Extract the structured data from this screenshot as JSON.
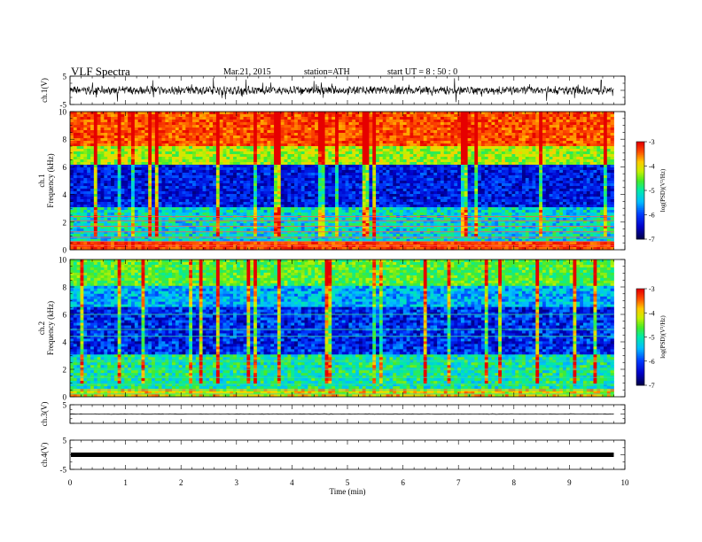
{
  "header": {
    "title": "VLF  Spectra",
    "date": "Mar.21, 2015",
    "station": "station=ATH",
    "start": "start  UT =   8 : 50 : 0"
  },
  "chart_data": [
    {
      "type": "line",
      "panel": "ch1-waveform",
      "ylabel": "ch.1(V)",
      "ylim": [
        -5,
        5
      ],
      "yticks": [
        "5",
        "-5"
      ],
      "xlim": [
        0,
        10
      ],
      "data_extent": [
        0,
        9.8
      ],
      "baseline_v": 0,
      "noise_amplitude_v": 3
    },
    {
      "type": "heatmap",
      "panel": "ch1-spectrogram",
      "ylabel": "ch.1 Frequency (kHz)",
      "ylim": [
        0,
        10
      ],
      "yticks": [
        "0",
        "2",
        "4",
        "6",
        "8",
        "10"
      ],
      "xlim": [
        0,
        10
      ],
      "data_extent": [
        0,
        9.8
      ],
      "colorbar": {
        "label": "log(PSD)(V²/Hz)",
        "range": [
          -7,
          -3
        ],
        "ticks": [
          "-3",
          "-4",
          "-5",
          "-6",
          "-7"
        ]
      }
    },
    {
      "type": "heatmap",
      "panel": "ch2-spectrogram",
      "ylabel": "ch.2 Frequency (kHz)",
      "ylim": [
        0,
        10
      ],
      "yticks": [
        "0",
        "2",
        "4",
        "6",
        "8",
        "10"
      ],
      "xlim": [
        0,
        10
      ],
      "data_extent": [
        0,
        9.8
      ],
      "colorbar": {
        "label": "log(PSD)(V²/Hz)",
        "range": [
          -7,
          -3
        ],
        "ticks": [
          "-3",
          "-4",
          "-5",
          "-6",
          "-7"
        ]
      }
    },
    {
      "type": "line",
      "panel": "ch3-waveform",
      "ylabel": "ch.3(V)",
      "ylim": [
        -5,
        5
      ],
      "yticks": [
        "5"
      ],
      "xlim": [
        0,
        10
      ],
      "data_extent": [
        0,
        9.8
      ],
      "baseline_v": 0
    },
    {
      "type": "line",
      "panel": "ch4-waveform",
      "ylabel": "ch.4(V)",
      "ylim": [
        -5,
        5
      ],
      "yticks": [
        "5",
        "-5"
      ],
      "xlim": [
        0,
        10
      ],
      "data_extent": [
        0,
        9.8
      ],
      "baseline_v": 0
    }
  ],
  "xaxis": {
    "label": "Time  (min)",
    "ticks": [
      "0",
      "1",
      "2",
      "3",
      "4",
      "5",
      "6",
      "7",
      "8",
      "9",
      "10"
    ]
  }
}
